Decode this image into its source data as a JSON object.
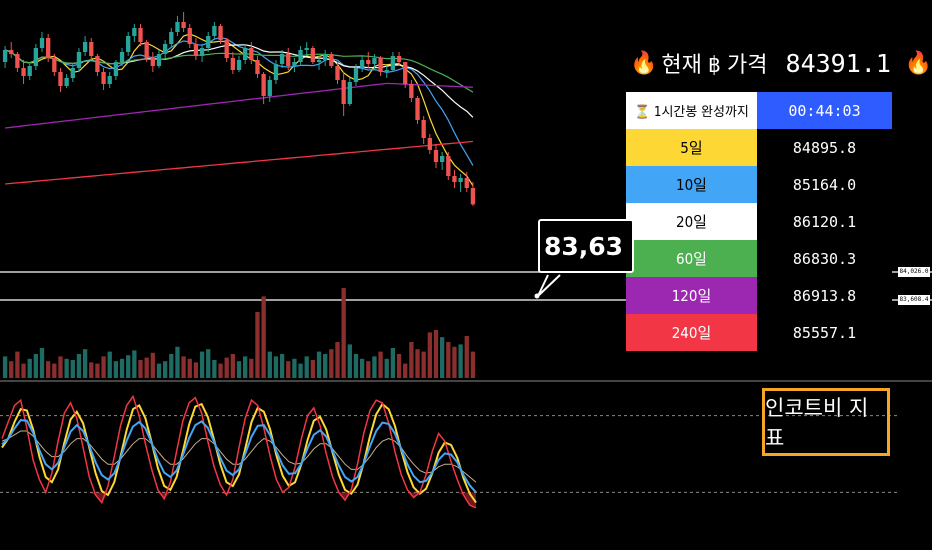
{
  "header": {
    "fire_left": "🔥",
    "title": "현재 ฿ 가격",
    "price": "84391.1",
    "fire_right": "🔥"
  },
  "countdown": {
    "label": "⏳ 1시간봉 완성까지",
    "value": "00:44:03"
  },
  "ma_rows": [
    {
      "label": "5일",
      "value": "84895.8",
      "bg": "#fdd835",
      "fg": "#000000"
    },
    {
      "label": "10일",
      "value": "85164.0",
      "bg": "#42a5f5",
      "fg": "#000000"
    },
    {
      "label": "20일",
      "value": "86120.1",
      "bg": "#ffffff",
      "fg": "#000000"
    },
    {
      "label": "60일",
      "value": "86830.3",
      "bg": "#4caf50",
      "fg": "#ffffff"
    },
    {
      "label": "120일",
      "value": "86913.8",
      "bg": "#9c27b0",
      "fg": "#ffffff"
    },
    {
      "label": "240일",
      "value": "85557.1",
      "bg": "#f23645",
      "fg": "#ffffff"
    }
  ],
  "callout_price": "83,63",
  "axis_tags": [
    "84,026.0",
    "83,608.4"
  ],
  "indicator_label": "인코트비 지표",
  "chart_data": {
    "type": "candlestick",
    "ylim": [
      83000,
      89500
    ],
    "candles_ohlc": [
      [
        87950,
        88350,
        87800,
        88250
      ],
      [
        88250,
        88450,
        88050,
        88150
      ],
      [
        88150,
        88200,
        87700,
        87800
      ],
      [
        87800,
        88000,
        87400,
        87600
      ],
      [
        87600,
        87900,
        87500,
        87850
      ],
      [
        87850,
        88400,
        87750,
        88300
      ],
      [
        88300,
        88700,
        88200,
        88550
      ],
      [
        88550,
        88650,
        87950,
        88050
      ],
      [
        88050,
        88150,
        87600,
        87700
      ],
      [
        87700,
        87800,
        87200,
        87350
      ],
      [
        87350,
        87650,
        87300,
        87550
      ],
      [
        87550,
        87900,
        87450,
        87800
      ],
      [
        87800,
        88300,
        87700,
        88200
      ],
      [
        88200,
        88600,
        88100,
        88450
      ],
      [
        88450,
        88550,
        88000,
        88100
      ],
      [
        88100,
        88150,
        87600,
        87700
      ],
      [
        87700,
        87800,
        87250,
        87400
      ],
      [
        87400,
        87700,
        87300,
        87600
      ],
      [
        87600,
        88000,
        87500,
        87950
      ],
      [
        87950,
        88300,
        87850,
        88200
      ],
      [
        88200,
        88700,
        88100,
        88600
      ],
      [
        88600,
        88900,
        88450,
        88800
      ],
      [
        88800,
        88900,
        88350,
        88450
      ],
      [
        88450,
        88500,
        87950,
        88050
      ],
      [
        88050,
        88200,
        87700,
        87850
      ],
      [
        87850,
        88250,
        87800,
        88150
      ],
      [
        88150,
        88500,
        88050,
        88400
      ],
      [
        88400,
        88800,
        88300,
        88700
      ],
      [
        88700,
        89100,
        88600,
        88950
      ],
      [
        88950,
        89200,
        88700,
        88800
      ],
      [
        88800,
        88900,
        88300,
        88400
      ],
      [
        88400,
        88550,
        88000,
        88100
      ],
      [
        88100,
        88400,
        87950,
        88300
      ],
      [
        88300,
        88700,
        88200,
        88600
      ],
      [
        88600,
        88950,
        88500,
        88850
      ],
      [
        88850,
        88900,
        88400,
        88500
      ],
      [
        88500,
        88550,
        87950,
        88050
      ],
      [
        88050,
        88200,
        87650,
        87750
      ],
      [
        87750,
        88100,
        87700,
        88000
      ],
      [
        88000,
        88400,
        87900,
        88300
      ],
      [
        88300,
        88450,
        87900,
        88000
      ],
      [
        88000,
        88100,
        87550,
        87650
      ],
      [
        87650,
        87700,
        86900,
        87100
      ],
      [
        87100,
        87600,
        86950,
        87500
      ],
      [
        87500,
        88000,
        87400,
        87900
      ],
      [
        87900,
        88250,
        87800,
        88150
      ],
      [
        88150,
        88300,
        87750,
        87850
      ],
      [
        87850,
        88050,
        87700,
        87950
      ],
      [
        87950,
        88350,
        87850,
        88250
      ],
      [
        88250,
        88450,
        88100,
        88300
      ],
      [
        88300,
        88350,
        87900,
        87950
      ],
      [
        87950,
        88100,
        87750,
        88000
      ],
      [
        88000,
        88250,
        87850,
        88150
      ],
      [
        88150,
        88200,
        87800,
        87850
      ],
      [
        87850,
        87950,
        87400,
        87500
      ],
      [
        87500,
        87700,
        86600,
        86900
      ],
      [
        86900,
        87550,
        86850,
        87450
      ],
      [
        87450,
        87900,
        87350,
        87800
      ],
      [
        87800,
        88100,
        87700,
        88000
      ],
      [
        88000,
        88200,
        87800,
        87900
      ],
      [
        87900,
        88150,
        87750,
        88050
      ],
      [
        88050,
        88100,
        87600,
        87700
      ],
      [
        87700,
        87850,
        87550,
        87750
      ],
      [
        87750,
        88200,
        87700,
        88100
      ],
      [
        88100,
        88200,
        87850,
        87950
      ],
      [
        87950,
        87950,
        87300,
        87400
      ],
      [
        87400,
        87500,
        86950,
        87050
      ],
      [
        87050,
        87100,
        86400,
        86500
      ],
      [
        86500,
        86600,
        85900,
        86050
      ],
      [
        86050,
        86150,
        85650,
        85750
      ],
      [
        85750,
        85900,
        85300,
        85450
      ],
      [
        85450,
        85700,
        85250,
        85600
      ],
      [
        85600,
        85700,
        85000,
        85100
      ],
      [
        85100,
        85250,
        84800,
        84950
      ],
      [
        84950,
        85150,
        84700,
        85050
      ],
      [
        85050,
        85200,
        84700,
        84800
      ],
      [
        84800,
        84950,
        84350,
        84391
      ]
    ],
    "volume": [
      18,
      14,
      22,
      12,
      16,
      20,
      25,
      14,
      12,
      18,
      16,
      15,
      20,
      24,
      13,
      12,
      18,
      22,
      14,
      16,
      19,
      23,
      15,
      17,
      21,
      12,
      14,
      20,
      26,
      18,
      16,
      13,
      22,
      24,
      15,
      12,
      17,
      20,
      14,
      18,
      16,
      55,
      68,
      22,
      18,
      20,
      14,
      16,
      12,
      18,
      15,
      22,
      20,
      24,
      30,
      75,
      28,
      20,
      16,
      14,
      18,
      22,
      16,
      25,
      20,
      12,
      30,
      24,
      22,
      38,
      40,
      34,
      30,
      26,
      28,
      35,
      22
    ],
    "ma_series": [
      {
        "name": "5일",
        "value": 84895.8,
        "color": "#fdd835"
      },
      {
        "name": "10일",
        "value": 85164.0,
        "color": "#42a5f5"
      },
      {
        "name": "20일",
        "value": 86120.1,
        "color": "#ffffff"
      },
      {
        "name": "60일",
        "value": 86830.3,
        "color": "#4caf50"
      },
      {
        "name": "120일",
        "value": 86913.8,
        "color": "#9c27b0"
      },
      {
        "name": "240일",
        "value": 85557.1,
        "color": "#f23645"
      }
    ],
    "price_lines": [
      84026.0,
      83608.4
    ],
    "oscillator_ylim": [
      0,
      100
    ],
    "oscillator_levels": [
      80,
      20
    ],
    "oscillator": {
      "k": [
        62,
        75,
        88,
        92,
        70,
        45,
        30,
        20,
        35,
        60,
        82,
        90,
        78,
        55,
        32,
        18,
        12,
        25,
        48,
        72,
        88,
        95,
        80,
        58,
        38,
        22,
        15,
        28,
        52,
        76,
        90,
        94,
        82,
        60,
        40,
        26,
        18,
        30,
        55,
        78,
        92,
        88,
        70,
        48,
        30,
        20,
        24,
        40,
        62,
        80,
        86,
        72,
        50,
        32,
        20,
        14,
        22,
        42,
        66,
        84,
        92,
        90,
        74,
        52,
        34,
        22,
        16,
        20,
        34,
        52,
        66,
        60,
        44,
        30,
        18,
        10,
        8
      ],
      "d": [
        55,
        62,
        75,
        85,
        84,
        69,
        48,
        32,
        28,
        38,
        59,
        77,
        83,
        74,
        55,
        35,
        21,
        18,
        28,
        48,
        69,
        85,
        88,
        78,
        59,
        39,
        25,
        22,
        32,
        52,
        73,
        87,
        89,
        79,
        61,
        42,
        28,
        25,
        34,
        54,
        75,
        86,
        83,
        69,
        49,
        33,
        25,
        28,
        42,
        61,
        76,
        79,
        69,
        51,
        34,
        22,
        19,
        26,
        43,
        64,
        81,
        89,
        85,
        72,
        53,
        36,
        24,
        19,
        23,
        35,
        51,
        59,
        57,
        47,
        31,
        19,
        12
      ],
      "slow": [
        60,
        62,
        65,
        68,
        68,
        64,
        58,
        52,
        48,
        48,
        52,
        58,
        62,
        62,
        58,
        52,
        46,
        42,
        42,
        46,
        52,
        58,
        62,
        62,
        58,
        52,
        46,
        42,
        42,
        46,
        52,
        58,
        62,
        62,
        58,
        52,
        46,
        42,
        42,
        46,
        52,
        58,
        62,
        60,
        55,
        49,
        44,
        42,
        43,
        48,
        54,
        58,
        58,
        54,
        48,
        42,
        38,
        38,
        42,
        48,
        55,
        60,
        62,
        60,
        55,
        48,
        42,
        37,
        35,
        36,
        40,
        42,
        42,
        40,
        36,
        32,
        28
      ]
    }
  }
}
